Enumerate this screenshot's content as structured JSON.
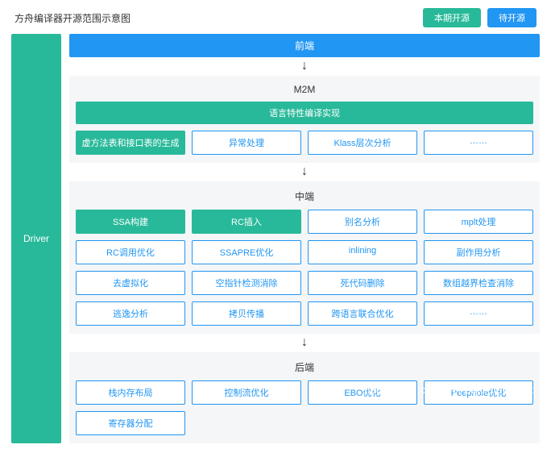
{
  "title": "方舟编译器开源范围示意图",
  "legend": {
    "current": {
      "label": "本期开源",
      "color": "#28b99a"
    },
    "pending": {
      "label": "待开源",
      "color": "#2196f3"
    }
  },
  "colors": {
    "green": "#28b99a",
    "blue": "#2196f3",
    "panel_bg": "#f4f6f8",
    "outline_border": "#2196f3",
    "outline_text": "#2196f3"
  },
  "driver": {
    "label": "Driver",
    "color": "#28b99a"
  },
  "arrow_glyph": "↓",
  "frontend": {
    "label": "前端",
    "color": "#2196f3"
  },
  "m2m": {
    "title": "M2M",
    "full_row": {
      "label": "语言特性编译实现",
      "color": "#28b99a"
    },
    "items": [
      {
        "label": "虚方法表和接口表的生成",
        "style": "solid",
        "color": "#28b99a"
      },
      {
        "label": "异常处理",
        "style": "outline",
        "color": "#2196f3"
      },
      {
        "label": "Klass层次分析",
        "style": "outline",
        "color": "#2196f3"
      },
      {
        "label": "……",
        "style": "outline",
        "color": "#2196f3"
      }
    ]
  },
  "middle": {
    "title": "中端",
    "rows": [
      [
        {
          "label": "SSA构建",
          "style": "solid",
          "color": "#28b99a"
        },
        {
          "label": "RC插入",
          "style": "solid",
          "color": "#28b99a"
        },
        {
          "label": "别名分析",
          "style": "outline",
          "color": "#2196f3"
        },
        {
          "label": "mplt处理",
          "style": "outline",
          "color": "#2196f3"
        }
      ],
      [
        {
          "label": "RC调用优化",
          "style": "outline",
          "color": "#2196f3"
        },
        {
          "label": "SSAPRE优化",
          "style": "outline",
          "color": "#2196f3"
        },
        {
          "label": "inlining",
          "style": "outline",
          "color": "#2196f3"
        },
        {
          "label": "副作用分析",
          "style": "outline",
          "color": "#2196f3"
        }
      ],
      [
        {
          "label": "去虚拟化",
          "style": "outline",
          "color": "#2196f3"
        },
        {
          "label": "空指针检测消除",
          "style": "outline",
          "color": "#2196f3"
        },
        {
          "label": "死代码删除",
          "style": "outline",
          "color": "#2196f3"
        },
        {
          "label": "数组越界检查消除",
          "style": "outline",
          "color": "#2196f3"
        }
      ],
      [
        {
          "label": "逃逸分析",
          "style": "outline",
          "color": "#2196f3"
        },
        {
          "label": "拷贝传播",
          "style": "outline",
          "color": "#2196f3"
        },
        {
          "label": "跨语言联合优化",
          "style": "outline",
          "color": "#2196f3"
        },
        {
          "label": "……",
          "style": "outline",
          "color": "#2196f3"
        }
      ]
    ]
  },
  "backend": {
    "title": "后端",
    "rows": [
      [
        {
          "label": "栈内存布局",
          "style": "outline",
          "color": "#2196f3"
        },
        {
          "label": "控制流优化",
          "style": "outline",
          "color": "#2196f3"
        },
        {
          "label": "EBO优化",
          "style": "outline",
          "color": "#2196f3"
        },
        {
          "label": "Peephole优化",
          "style": "outline",
          "color": "#2196f3"
        }
      ],
      [
        {
          "label": "寄存器分配",
          "style": "outline",
          "color": "#2196f3"
        }
      ]
    ]
  },
  "watermark": "https://blog.csdn.net/BigDataDigest"
}
